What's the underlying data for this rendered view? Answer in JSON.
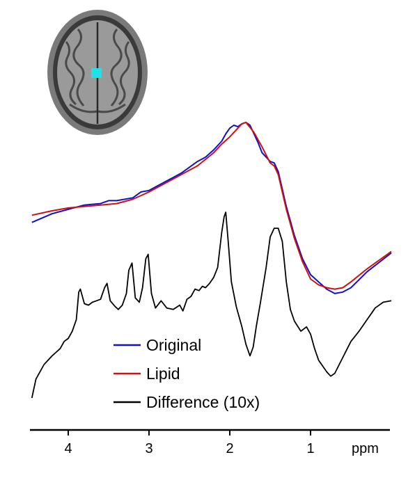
{
  "chart_data": {
    "type": "line",
    "title": "",
    "xlabel": "ppm",
    "ylabel": "",
    "x_reversed": true,
    "xlim": [
      4.45,
      0
    ],
    "ylim": [
      0,
      100
    ],
    "x_ticks": [
      4,
      3,
      2,
      1
    ],
    "x_tick_labels": [
      "4",
      "3",
      "2",
      "1"
    ],
    "legend_position": "bottom-center",
    "grid": false,
    "inset": "axial brain MRI slice with voxel marker",
    "series": [
      {
        "name": "Original",
        "color": "#1010cc",
        "x": [
          4.45,
          4.2,
          4.0,
          3.8,
          3.6,
          3.5,
          3.4,
          3.2,
          3.1,
          3.0,
          2.8,
          2.6,
          2.4,
          2.3,
          2.2,
          2.1,
          2.05,
          2.0,
          1.95,
          1.9,
          1.85,
          1.8,
          1.75,
          1.7,
          1.65,
          1.6,
          1.5,
          1.45,
          1.4,
          1.35,
          1.3,
          1.2,
          1.1,
          1.0,
          0.9,
          0.8,
          0.7,
          0.6,
          0.5,
          0.3,
          0.0
        ],
        "y": [
          60.5,
          63.5,
          65.0,
          66.5,
          67.0,
          68.0,
          68.0,
          69.0,
          71.0,
          71.5,
          74.5,
          77.5,
          81.5,
          83.0,
          85.5,
          88.5,
          91.0,
          93.0,
          94.0,
          93.5,
          94.5,
          95.0,
          94.0,
          91.0,
          88.0,
          84.5,
          81.5,
          81.0,
          78.0,
          72.0,
          66.0,
          56.0,
          48.0,
          42.5,
          40.0,
          37.5,
          36.0,
          36.5,
          38.0,
          43.5,
          50.0
        ]
      },
      {
        "name": "Lipid",
        "color": "#d01010",
        "x": [
          4.45,
          4.2,
          4.0,
          3.8,
          3.6,
          3.4,
          3.2,
          3.0,
          2.8,
          2.6,
          2.4,
          2.2,
          2.1,
          2.0,
          1.9,
          1.85,
          1.8,
          1.7,
          1.6,
          1.5,
          1.45,
          1.4,
          1.35,
          1.3,
          1.2,
          1.1,
          1.0,
          0.9,
          0.8,
          0.7,
          0.6,
          0.5,
          0.3,
          0.0
        ],
        "y": [
          63.0,
          64.5,
          65.5,
          66.0,
          66.5,
          67.0,
          68.5,
          71.0,
          74.0,
          77.0,
          80.0,
          84.5,
          87.5,
          90.0,
          93.0,
          94.5,
          95.0,
          91.5,
          86.5,
          81.0,
          80.0,
          77.0,
          71.0,
          65.0,
          55.0,
          47.0,
          41.0,
          39.0,
          38.0,
          37.5,
          38.0,
          40.0,
          44.5,
          50.5
        ]
      },
      {
        "name": "Difference (10x)",
        "color": "#000000",
        "x": [
          4.45,
          4.4,
          4.3,
          4.2,
          4.1,
          4.05,
          4.0,
          3.95,
          3.9,
          3.87,
          3.85,
          3.8,
          3.75,
          3.7,
          3.65,
          3.6,
          3.55,
          3.52,
          3.48,
          3.42,
          3.38,
          3.33,
          3.28,
          3.25,
          3.21,
          3.17,
          3.12,
          3.08,
          3.04,
          3.01,
          2.97,
          2.92,
          2.85,
          2.78,
          2.7,
          2.62,
          2.58,
          2.53,
          2.48,
          2.43,
          2.38,
          2.34,
          2.3,
          2.25,
          2.2,
          2.15,
          2.1,
          2.07,
          2.05,
          2.02,
          1.98,
          1.92,
          1.85,
          1.8,
          1.75,
          1.71,
          1.67,
          1.62,
          1.55,
          1.5,
          1.45,
          1.4,
          1.35,
          1.3,
          1.25,
          1.2,
          1.12,
          1.05,
          1.0,
          0.95,
          0.9,
          0.85,
          0.8,
          0.75,
          0.7,
          0.6,
          0.5,
          0.4,
          0.3,
          0.2,
          0.1,
          0.0
        ],
        "y": [
          0.0,
          6.5,
          11.5,
          14.5,
          17.0,
          19.5,
          20.5,
          23.0,
          27.0,
          36.5,
          37.5,
          32.5,
          32.0,
          33.0,
          33.5,
          34.0,
          38.0,
          39.5,
          33.5,
          31.5,
          30.5,
          32.0,
          36.0,
          44.0,
          46.5,
          34.5,
          33.0,
          38.0,
          48.0,
          49.5,
          36.0,
          31.0,
          33.5,
          31.0,
          30.5,
          32.0,
          30.0,
          34.0,
          35.0,
          37.5,
          37.0,
          38.5,
          38.0,
          39.5,
          41.5,
          45.0,
          57.0,
          62.5,
          64.0,
          54.0,
          40.0,
          31.5,
          24.5,
          18.5,
          14.5,
          17.5,
          25.0,
          33.0,
          45.0,
          55.5,
          58.5,
          58.5,
          54.0,
          40.0,
          30.5,
          26.5,
          23.0,
          24.5,
          22.0,
          17.0,
          13.0,
          11.0,
          9.0,
          7.5,
          8.5,
          14.0,
          19.5,
          23.0,
          27.0,
          31.0,
          33.0,
          33.5
        ]
      }
    ]
  }
}
